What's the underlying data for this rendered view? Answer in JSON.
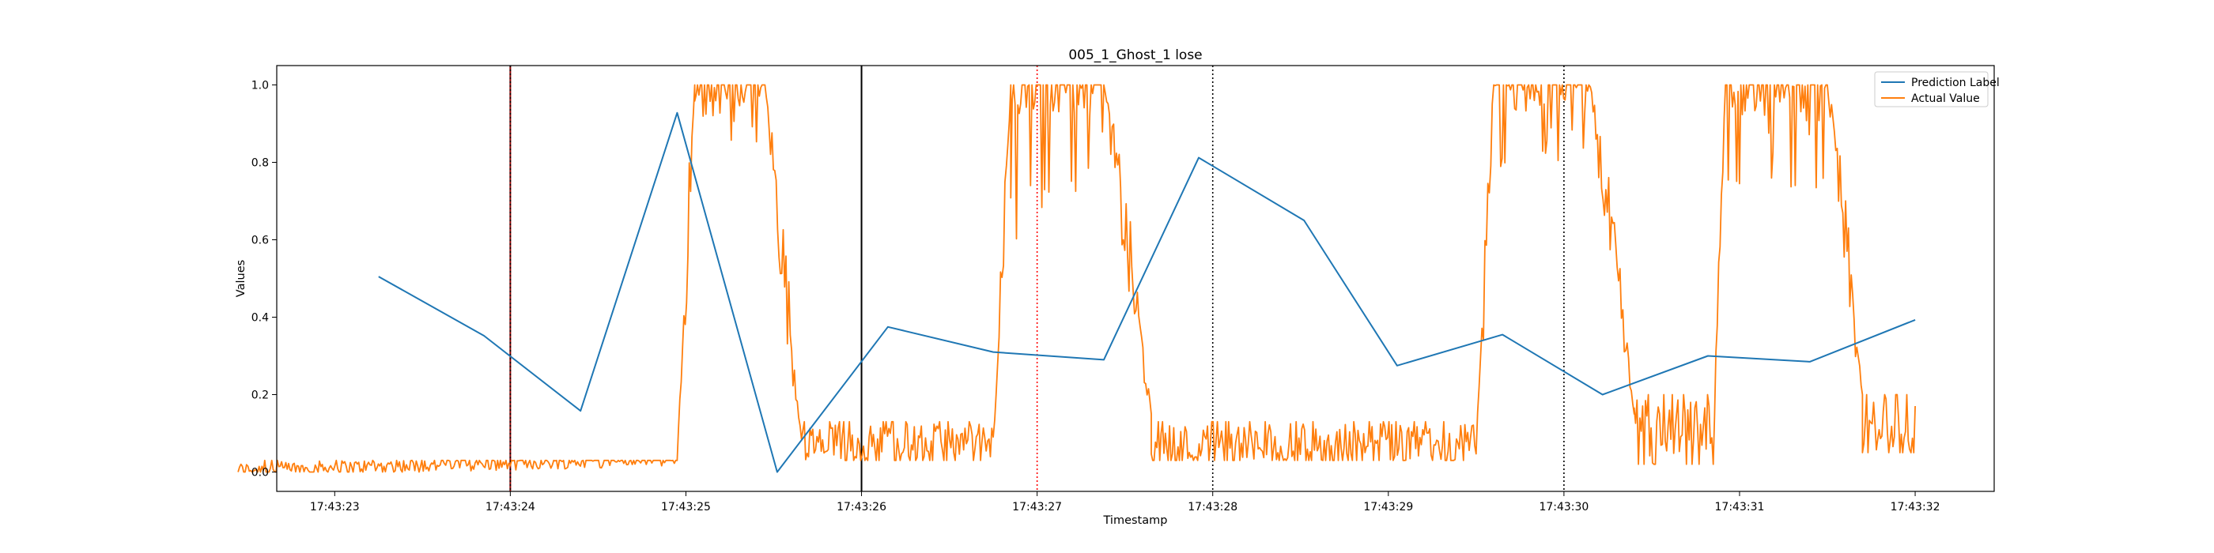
{
  "chart_data": {
    "type": "line",
    "title": "005_1_Ghost_1 lose",
    "xlabel": "Timestamp",
    "ylabel": "Values",
    "xlim": [
      "17:43:22.67",
      "17:43:32.45"
    ],
    "ylim": [
      -0.05,
      1.05
    ],
    "x_ticks": [
      "17:43:23",
      "17:43:24",
      "17:43:25",
      "17:43:26",
      "17:43:27",
      "17:43:28",
      "17:43:29",
      "17:43:30",
      "17:43:31",
      "17:43:32"
    ],
    "y_ticks": [
      "0.0",
      "0.2",
      "0.4",
      "0.6",
      "0.8",
      "1.0"
    ],
    "legend_position": "top-right",
    "grid": false,
    "series": [
      {
        "name": "Prediction Label",
        "color": "#1f77b4",
        "x": [
          "17:43:23.25",
          "17:43:23.85",
          "17:43:24.40",
          "17:43:24.95",
          "17:43:25.52",
          "17:43:26.15",
          "17:43:26.75",
          "17:43:27.38",
          "17:43:27.92",
          "17:43:28.52",
          "17:43:29.05",
          "17:43:29.65",
          "17:43:30.22",
          "17:43:30.82",
          "17:43:31.40",
          "17:43:32.00"
        ],
        "values": [
          0.505,
          0.352,
          0.158,
          0.928,
          0.0,
          0.375,
          0.31,
          0.29,
          0.812,
          0.65,
          0.275,
          0.355,
          0.2,
          0.3,
          0.285,
          0.393
        ]
      },
      {
        "name": "Actual Value",
        "color": "#ff7f0e",
        "segments": [
          {
            "x": [
              "17:43:22.45",
              "17:43:24.95"
            ],
            "low": 0.0,
            "high": 0.03,
            "trend": "slowly rising to 0.05 near end"
          },
          {
            "x": [
              "17:43:24.95",
              "17:43:25.05"
            ],
            "rise_to": 1.0
          },
          {
            "x": [
              "17:43:25.05",
              "17:43:25.45"
            ],
            "low": 0.78,
            "high": 1.0
          },
          {
            "x": [
              "17:43:25.45",
              "17:43:25.65"
            ],
            "fall_to": 0.12
          },
          {
            "x": [
              "17:43:25.65",
              "17:43:26.75"
            ],
            "low": 0.03,
            "high": 0.13
          },
          {
            "x": [
              "17:43:26.75",
              "17:43:26.85"
            ],
            "rise_to": 1.0
          },
          {
            "x": [
              "17:43:26.85",
              "17:43:27.38"
            ],
            "low": 0.6,
            "high": 1.0
          },
          {
            "x": [
              "17:43:27.38",
              "17:43:27.65"
            ],
            "fall_to": 0.15
          },
          {
            "x": [
              "17:43:27.65",
              "17:43:29.50"
            ],
            "low": 0.03,
            "high": 0.13
          },
          {
            "x": [
              "17:43:29.50",
              "17:43:29.60"
            ],
            "rise_to": 1.0
          },
          {
            "x": [
              "17:43:29.60",
              "17:43:30.15"
            ],
            "low": 0.78,
            "high": 1.0
          },
          {
            "x": [
              "17:43:30.15",
              "17:43:30.40"
            ],
            "fall_to": 0.15
          },
          {
            "x": [
              "17:43:30.40",
              "17:43:30.85"
            ],
            "low": 0.02,
            "high": 0.2
          },
          {
            "x": [
              "17:43:30.85",
              "17:43:30.92"
            ],
            "rise_to": 1.0
          },
          {
            "x": [
              "17:43:30.92",
              "17:43:31.50"
            ],
            "low": 0.73,
            "high": 1.0
          },
          {
            "x": [
              "17:43:31.50",
              "17:43:31.70"
            ],
            "fall_to": 0.2
          },
          {
            "x": [
              "17:43:31.70",
              "17:43:32.00"
            ],
            "low": 0.05,
            "high": 0.2
          }
        ]
      }
    ],
    "vertical_lines": [
      {
        "x": "17:43:24.00",
        "color": "#8b0000",
        "style": "solid"
      },
      {
        "x": "17:43:24.00",
        "color": "#000000",
        "style": "dotted"
      },
      {
        "x": "17:43:26.00",
        "color": "#000000",
        "style": "solid"
      },
      {
        "x": "17:43:27.00",
        "color": "#ff0000",
        "style": "dotted"
      },
      {
        "x": "17:43:28.00",
        "color": "#000000",
        "style": "dotted"
      },
      {
        "x": "17:43:30.00",
        "color": "#000000",
        "style": "dotted"
      }
    ]
  }
}
